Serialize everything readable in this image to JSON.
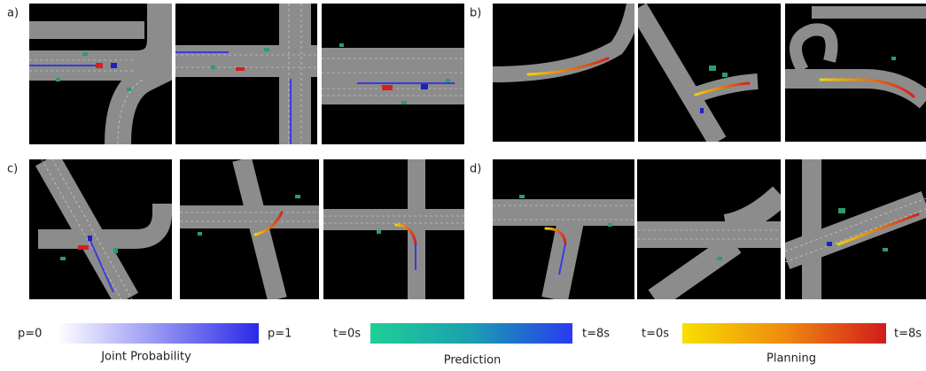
{
  "panels": [
    {
      "label": "a)"
    },
    {
      "label": "b)"
    },
    {
      "label": "c)"
    },
    {
      "label": "d)"
    }
  ],
  "legends": [
    {
      "min_label": "p=0",
      "max_label": "p=1",
      "title": "Joint Probability"
    },
    {
      "min_label": "t=0s",
      "max_label": "t=8s",
      "title": "Prediction"
    },
    {
      "min_label": "t=0s",
      "max_label": "t=8s",
      "title": "Planning"
    }
  ]
}
